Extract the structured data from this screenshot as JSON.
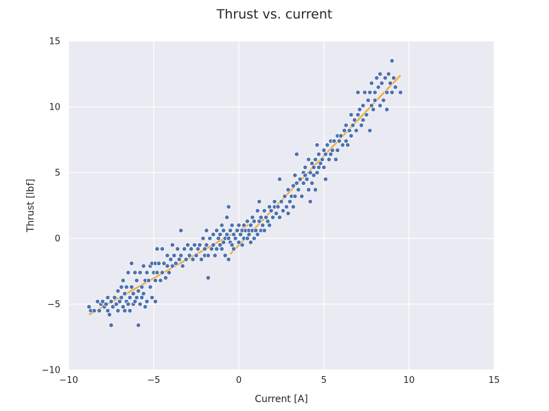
{
  "chart_data": {
    "type": "scatter",
    "title": "Thrust vs. current",
    "xlabel": "Current [A]",
    "ylabel": "Thrust [lbf]",
    "xlim": [
      -10,
      15
    ],
    "ylim": [
      -10,
      15
    ],
    "xticks": [
      -10,
      -5,
      0,
      5,
      10,
      15
    ],
    "yticks": [
      -10,
      -5,
      0,
      5,
      10,
      15
    ],
    "x_tick_labels": [
      "−10",
      "−5",
      "0",
      "5",
      "10",
      "15"
    ],
    "y_tick_labels": [
      "−10",
      "−5",
      "0",
      "5",
      "10",
      "15"
    ],
    "grid": true,
    "style": {
      "background": "#eaeaf2",
      "grid_color": "#ffffff",
      "point_color": "#4c72b0",
      "point_edge": "#ffffff",
      "fit_color": "#f5a623"
    },
    "series": [
      {
        "kind": "scatter",
        "points": [
          [
            -8.8,
            -5.2
          ],
          [
            -8.7,
            -5.5
          ],
          [
            -8.5,
            -5.5
          ],
          [
            -8.3,
            -4.8
          ],
          [
            -8.2,
            -5.5
          ],
          [
            -8.1,
            -5.0
          ],
          [
            -8.0,
            -4.8
          ],
          [
            -7.9,
            -5.2
          ],
          [
            -7.8,
            -5.0
          ],
          [
            -7.7,
            -4.5
          ],
          [
            -7.7,
            -5.5
          ],
          [
            -7.6,
            -5.8
          ],
          [
            -7.5,
            -6.6
          ],
          [
            -7.5,
            -4.8
          ],
          [
            -7.4,
            -5.2
          ],
          [
            -7.3,
            -4.5
          ],
          [
            -7.2,
            -5.0
          ],
          [
            -7.1,
            -4.0
          ],
          [
            -7.1,
            -5.5
          ],
          [
            -7.0,
            -4.8
          ],
          [
            -6.9,
            -4.5
          ],
          [
            -6.9,
            -3.7
          ],
          [
            -6.8,
            -5.2
          ],
          [
            -6.8,
            -3.2
          ],
          [
            -6.7,
            -5.5
          ],
          [
            -6.7,
            -4.2
          ],
          [
            -6.6,
            -4.8
          ],
          [
            -6.6,
            -3.7
          ],
          [
            -6.5,
            -2.6
          ],
          [
            -6.5,
            -5.0
          ],
          [
            -6.4,
            -4.5
          ],
          [
            -6.4,
            -5.5
          ],
          [
            -6.3,
            -1.9
          ],
          [
            -6.3,
            -3.7
          ],
          [
            -6.2,
            -4.2
          ],
          [
            -6.2,
            -5.0
          ],
          [
            -6.1,
            -2.6
          ],
          [
            -6.1,
            -4.8
          ],
          [
            -6.0,
            -3.2
          ],
          [
            -6.0,
            -4.5
          ],
          [
            -5.9,
            -6.6
          ],
          [
            -5.9,
            -4.0
          ],
          [
            -5.8,
            -2.6
          ],
          [
            -5.8,
            -5.0
          ],
          [
            -5.7,
            -3.7
          ],
          [
            -5.7,
            -4.5
          ],
          [
            -5.6,
            -2.1
          ],
          [
            -5.6,
            -4.2
          ],
          [
            -5.5,
            -3.2
          ],
          [
            -5.5,
            -5.2
          ],
          [
            -5.4,
            -2.6
          ],
          [
            -5.4,
            -4.8
          ],
          [
            -5.3,
            -3.2
          ],
          [
            -5.2,
            -2.1
          ],
          [
            -5.2,
            -3.7
          ],
          [
            -5.1,
            -1.9
          ],
          [
            -5.1,
            -4.5
          ],
          [
            -5.0,
            -2.6
          ],
          [
            -4.9,
            -1.9
          ],
          [
            -4.9,
            -3.2
          ],
          [
            -4.9,
            -4.8
          ],
          [
            -4.8,
            -0.8
          ],
          [
            -4.8,
            -2.6
          ],
          [
            -4.7,
            -1.9
          ],
          [
            -4.6,
            -3.2
          ],
          [
            -4.5,
            -0.8
          ],
          [
            -4.5,
            -2.6
          ],
          [
            -4.4,
            -1.9
          ],
          [
            -4.3,
            -3.0
          ],
          [
            -4.2,
            -1.3
          ],
          [
            -4.2,
            -2.1
          ],
          [
            -4.1,
            -2.6
          ],
          [
            -4.0,
            -1.6
          ],
          [
            -3.9,
            -0.5
          ],
          [
            -3.9,
            -2.1
          ],
          [
            -3.8,
            -1.3
          ],
          [
            -3.7,
            -1.9
          ],
          [
            -3.6,
            -0.8
          ],
          [
            -3.5,
            -1.6
          ],
          [
            -3.4,
            0.6
          ],
          [
            -3.4,
            -1.3
          ],
          [
            -3.3,
            -2.1
          ],
          [
            -3.2,
            -0.8
          ],
          [
            -3.1,
            -1.6
          ],
          [
            -3.0,
            -0.5
          ],
          [
            -2.9,
            -1.3
          ],
          [
            -2.8,
            -0.8
          ],
          [
            -2.7,
            -1.6
          ],
          [
            -2.6,
            -0.5
          ],
          [
            -2.5,
            -1.3
          ],
          [
            -2.4,
            -0.8
          ],
          [
            -2.3,
            -0.5
          ],
          [
            -2.2,
            -1.6
          ],
          [
            -2.1,
            0.0
          ],
          [
            -2.0,
            -0.8
          ],
          [
            -2.0,
            -1.3
          ],
          [
            -1.9,
            0.6
          ],
          [
            -1.9,
            -0.5
          ],
          [
            -1.8,
            -3.0
          ],
          [
            -1.8,
            -1.3
          ],
          [
            -1.7,
            0.0
          ],
          [
            -1.6,
            -0.8
          ],
          [
            -1.5,
            0.3
          ],
          [
            -1.5,
            -0.5
          ],
          [
            -1.4,
            -1.3
          ],
          [
            -1.3,
            0.6
          ],
          [
            -1.3,
            -0.8
          ],
          [
            -1.2,
            0.0
          ],
          [
            -1.1,
            0.3
          ],
          [
            -1.1,
            -0.5
          ],
          [
            -1.0,
            1.0
          ],
          [
            -1.0,
            -0.8
          ],
          [
            -0.9,
            0.6
          ],
          [
            -0.9,
            -0.3
          ],
          [
            -0.8,
            0.0
          ],
          [
            -0.8,
            -1.3
          ],
          [
            -0.7,
            1.6
          ],
          [
            -0.7,
            0.3
          ],
          [
            -0.6,
            0.0
          ],
          [
            -0.6,
            2.4
          ],
          [
            -0.6,
            -1.6
          ],
          [
            -0.5,
            0.6
          ],
          [
            -0.5,
            -0.3
          ],
          [
            -0.4,
            1.0
          ],
          [
            -0.4,
            -0.5
          ],
          [
            -0.3,
            0.3
          ],
          [
            -0.3,
            -0.8
          ],
          [
            -0.2,
            0.0
          ],
          [
            -0.1,
            0.6
          ],
          [
            0.0,
            1.0
          ],
          [
            0.0,
            -0.3
          ],
          [
            0.1,
            0.3
          ],
          [
            0.2,
            0.6
          ],
          [
            0.2,
            -0.5
          ],
          [
            0.3,
            1.0
          ],
          [
            0.3,
            0.0
          ],
          [
            0.4,
            0.6
          ],
          [
            0.5,
            0.0
          ],
          [
            0.5,
            1.3
          ],
          [
            0.6,
            0.3
          ],
          [
            0.6,
            0.6
          ],
          [
            0.7,
            1.0
          ],
          [
            0.7,
            -0.3
          ],
          [
            0.8,
            0.6
          ],
          [
            0.8,
            1.6
          ],
          [
            0.9,
            0.0
          ],
          [
            0.9,
            1.3
          ],
          [
            1.0,
            0.6
          ],
          [
            1.1,
            2.1
          ],
          [
            1.1,
            0.3
          ],
          [
            1.2,
            1.3
          ],
          [
            1.2,
            2.8
          ],
          [
            1.3,
            0.6
          ],
          [
            1.3,
            1.6
          ],
          [
            1.4,
            1.0
          ],
          [
            1.5,
            2.1
          ],
          [
            1.5,
            0.6
          ],
          [
            1.6,
            1.6
          ],
          [
            1.7,
            1.3
          ],
          [
            1.8,
            2.4
          ],
          [
            1.8,
            1.0
          ],
          [
            1.9,
            2.1
          ],
          [
            2.0,
            1.6
          ],
          [
            2.1,
            2.8
          ],
          [
            2.1,
            2.4
          ],
          [
            2.2,
            1.9
          ],
          [
            2.3,
            2.4
          ],
          [
            2.4,
            4.5
          ],
          [
            2.4,
            1.6
          ],
          [
            2.5,
            2.8
          ],
          [
            2.6,
            2.1
          ],
          [
            2.7,
            3.2
          ],
          [
            2.8,
            2.4
          ],
          [
            2.9,
            3.7
          ],
          [
            2.9,
            1.9
          ],
          [
            3.0,
            2.8
          ],
          [
            3.1,
            3.2
          ],
          [
            3.2,
            4.0
          ],
          [
            3.2,
            2.4
          ],
          [
            3.3,
            4.8
          ],
          [
            3.3,
            3.2
          ],
          [
            3.4,
            6.4
          ],
          [
            3.4,
            4.2
          ],
          [
            3.5,
            3.7
          ],
          [
            3.6,
            4.5
          ],
          [
            3.7,
            3.2
          ],
          [
            3.8,
            5.0
          ],
          [
            3.8,
            4.2
          ],
          [
            3.9,
            5.4
          ],
          [
            3.9,
            4.8
          ],
          [
            4.0,
            4.5
          ],
          [
            4.1,
            6.0
          ],
          [
            4.1,
            3.7
          ],
          [
            4.2,
            5.0
          ],
          [
            4.2,
            2.8
          ],
          [
            4.3,
            5.7
          ],
          [
            4.3,
            4.2
          ],
          [
            4.4,
            5.4
          ],
          [
            4.4,
            4.8
          ],
          [
            4.5,
            6.0
          ],
          [
            4.5,
            3.7
          ],
          [
            4.6,
            7.1
          ],
          [
            4.6,
            5.0
          ],
          [
            4.7,
            6.4
          ],
          [
            4.7,
            5.4
          ],
          [
            4.8,
            5.7
          ],
          [
            4.9,
            6.0
          ],
          [
            5.0,
            6.7
          ],
          [
            5.0,
            5.4
          ],
          [
            5.1,
            4.5
          ],
          [
            5.1,
            6.4
          ],
          [
            5.2,
            7.1
          ],
          [
            5.3,
            6.0
          ],
          [
            5.4,
            7.4
          ],
          [
            5.4,
            6.4
          ],
          [
            5.5,
            6.7
          ],
          [
            5.6,
            7.4
          ],
          [
            5.7,
            6.0
          ],
          [
            5.8,
            7.8
          ],
          [
            5.8,
            6.7
          ],
          [
            5.9,
            7.4
          ],
          [
            6.0,
            7.8
          ],
          [
            6.1,
            7.1
          ],
          [
            6.2,
            8.2
          ],
          [
            6.3,
            7.4
          ],
          [
            6.3,
            8.6
          ],
          [
            6.4,
            7.1
          ],
          [
            6.5,
            8.2
          ],
          [
            6.6,
            9.4
          ],
          [
            6.6,
            7.8
          ],
          [
            6.7,
            8.6
          ],
          [
            6.8,
            9.0
          ],
          [
            6.9,
            8.2
          ],
          [
            7.0,
            9.4
          ],
          [
            7.0,
            11.1
          ],
          [
            7.1,
            9.8
          ],
          [
            7.2,
            8.6
          ],
          [
            7.3,
            10.1
          ],
          [
            7.3,
            9.0
          ],
          [
            7.4,
            11.1
          ],
          [
            7.5,
            9.4
          ],
          [
            7.6,
            10.5
          ],
          [
            7.7,
            8.2
          ],
          [
            7.7,
            11.1
          ],
          [
            7.8,
            10.1
          ],
          [
            7.8,
            11.8
          ],
          [
            7.9,
            9.8
          ],
          [
            8.0,
            11.1
          ],
          [
            8.0,
            10.5
          ],
          [
            8.1,
            12.2
          ],
          [
            8.2,
            11.5
          ],
          [
            8.3,
            10.1
          ],
          [
            8.3,
            12.5
          ],
          [
            8.4,
            11.8
          ],
          [
            8.5,
            10.5
          ],
          [
            8.6,
            12.2
          ],
          [
            8.7,
            11.1
          ],
          [
            8.7,
            9.8
          ],
          [
            8.8,
            12.5
          ],
          [
            8.9,
            11.8
          ],
          [
            9.0,
            13.5
          ],
          [
            9.0,
            11.1
          ],
          [
            9.1,
            12.2
          ],
          [
            9.2,
            11.5
          ],
          [
            9.5,
            11.1
          ]
        ]
      },
      {
        "kind": "line",
        "segment": "negative",
        "points": [
          [
            -8.8,
            -5.8
          ],
          [
            0.8,
            1.2
          ]
        ]
      },
      {
        "kind": "line",
        "segment": "positive",
        "points": [
          [
            -0.5,
            -1.2
          ],
          [
            9.5,
            12.4
          ]
        ]
      }
    ]
  }
}
